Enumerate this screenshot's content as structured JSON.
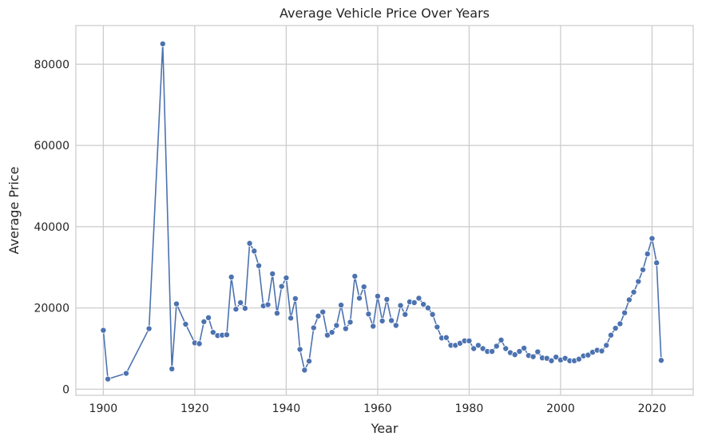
{
  "chart_data": {
    "type": "line",
    "title": "Average Vehicle Price Over Years",
    "xlabel": "Year",
    "ylabel": "Average Price",
    "xlim": [
      1894,
      2029
    ],
    "ylim": [
      -1500,
      89500
    ],
    "xticks": [
      1900,
      1920,
      1940,
      1960,
      1980,
      2000,
      2020
    ],
    "yticks": [
      0,
      20000,
      40000,
      60000,
      80000
    ],
    "grid": true,
    "legend": "none",
    "colors": {
      "line": "#4c72b0",
      "grid": "#cccccc",
      "frame": "#cccccc",
      "text": "#262626"
    },
    "line_style": "solid with circle markers",
    "series": [
      {
        "points": [
          [
            1900,
            14500
          ],
          [
            1901,
            2500
          ],
          [
            1905,
            3900
          ],
          [
            1910,
            14900
          ],
          [
            1913,
            85000
          ],
          [
            1915,
            5000
          ],
          [
            1916,
            21000
          ],
          [
            1918,
            16000
          ],
          [
            1920,
            11400
          ],
          [
            1921,
            11200
          ],
          [
            1922,
            16600
          ],
          [
            1923,
            17600
          ],
          [
            1924,
            14000
          ],
          [
            1925,
            13200
          ],
          [
            1926,
            13300
          ],
          [
            1927,
            13400
          ],
          [
            1928,
            27600
          ],
          [
            1929,
            19700
          ],
          [
            1930,
            21300
          ],
          [
            1931,
            19900
          ],
          [
            1932,
            35900
          ],
          [
            1933,
            34000
          ],
          [
            1934,
            30400
          ],
          [
            1935,
            20500
          ],
          [
            1936,
            20800
          ],
          [
            1937,
            28400
          ],
          [
            1938,
            18700
          ],
          [
            1939,
            25300
          ],
          [
            1940,
            27400
          ],
          [
            1941,
            17500
          ],
          [
            1942,
            22300
          ],
          [
            1943,
            9800
          ],
          [
            1944,
            4700
          ],
          [
            1945,
            6900
          ],
          [
            1946,
            15100
          ],
          [
            1947,
            18000
          ],
          [
            1948,
            19000
          ],
          [
            1949,
            13300
          ],
          [
            1950,
            14000
          ],
          [
            1951,
            15700
          ],
          [
            1952,
            20700
          ],
          [
            1953,
            14900
          ],
          [
            1954,
            16500
          ],
          [
            1955,
            27800
          ],
          [
            1956,
            22400
          ],
          [
            1957,
            25200
          ],
          [
            1958,
            18500
          ],
          [
            1959,
            15500
          ],
          [
            1960,
            22900
          ],
          [
            1961,
            16800
          ],
          [
            1962,
            22100
          ],
          [
            1963,
            16900
          ],
          [
            1964,
            15700
          ],
          [
            1965,
            20600
          ],
          [
            1966,
            18400
          ],
          [
            1967,
            21500
          ],
          [
            1968,
            21300
          ],
          [
            1969,
            22400
          ],
          [
            1970,
            20900
          ],
          [
            1971,
            20000
          ],
          [
            1972,
            18400
          ],
          [
            1973,
            15300
          ],
          [
            1974,
            12600
          ],
          [
            1975,
            12700
          ],
          [
            1976,
            10800
          ],
          [
            1977,
            10800
          ],
          [
            1978,
            11300
          ],
          [
            1979,
            11900
          ],
          [
            1980,
            11900
          ],
          [
            1981,
            10000
          ],
          [
            1982,
            10800
          ],
          [
            1983,
            10000
          ],
          [
            1984,
            9300
          ],
          [
            1985,
            9300
          ],
          [
            1986,
            10600
          ],
          [
            1987,
            12100
          ],
          [
            1988,
            10000
          ],
          [
            1989,
            9000
          ],
          [
            1990,
            8500
          ],
          [
            1991,
            9300
          ],
          [
            1992,
            10100
          ],
          [
            1993,
            8300
          ],
          [
            1994,
            8000
          ],
          [
            1995,
            9200
          ],
          [
            1996,
            7700
          ],
          [
            1997,
            7600
          ],
          [
            1998,
            7000
          ],
          [
            1999,
            7900
          ],
          [
            2000,
            7200
          ],
          [
            2001,
            7600
          ],
          [
            2002,
            7000
          ],
          [
            2003,
            7000
          ],
          [
            2004,
            7400
          ],
          [
            2005,
            8200
          ],
          [
            2006,
            8400
          ],
          [
            2007,
            9100
          ],
          [
            2008,
            9600
          ],
          [
            2009,
            9400
          ],
          [
            2010,
            10800
          ],
          [
            2011,
            13300
          ],
          [
            2012,
            15000
          ],
          [
            2013,
            16100
          ],
          [
            2014,
            18800
          ],
          [
            2015,
            22000
          ],
          [
            2016,
            23900
          ],
          [
            2017,
            26500
          ],
          [
            2018,
            29400
          ],
          [
            2019,
            33300
          ],
          [
            2020,
            37100
          ],
          [
            2021,
            31100
          ],
          [
            2022,
            7100
          ]
        ]
      }
    ]
  }
}
